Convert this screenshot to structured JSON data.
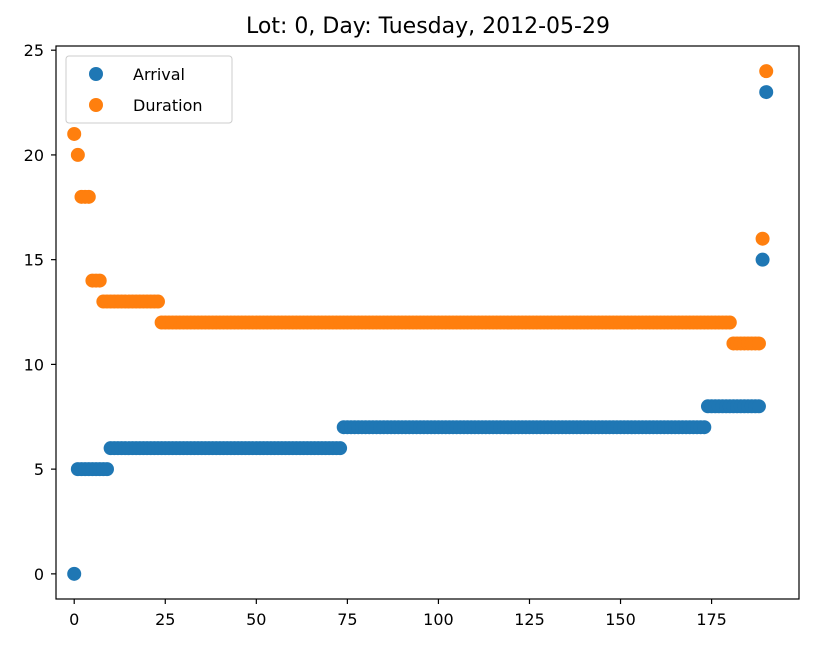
{
  "chart_data": {
    "type": "scatter",
    "title": "Lot: 0, Day: Tuesday, 2012-05-29",
    "xlabel": "",
    "ylabel": "",
    "xlim": [
      -5,
      199
    ],
    "ylim": [
      -1.2,
      25.2
    ],
    "xticks": [
      0,
      25,
      50,
      75,
      100,
      125,
      150,
      175
    ],
    "yticks": [
      0,
      5,
      10,
      15,
      20,
      25
    ],
    "grid": false,
    "legend_position": "top-left",
    "series": [
      {
        "name": "Arrival",
        "color": "#1f77b4",
        "segments": [
          {
            "x_start": 0,
            "x_end": 0,
            "y": 0
          },
          {
            "x_start": 1,
            "x_end": 9,
            "y": 5
          },
          {
            "x_start": 10,
            "x_end": 73,
            "y": 6
          },
          {
            "x_start": 74,
            "x_end": 173,
            "y": 7
          },
          {
            "x_start": 174,
            "x_end": 188,
            "y": 8
          },
          {
            "x_start": 189,
            "x_end": 189,
            "y": 15
          },
          {
            "x_start": 190,
            "x_end": 190,
            "y": 23
          }
        ]
      },
      {
        "name": "Duration",
        "color": "#ff7f0e",
        "segments": [
          {
            "x_start": 0,
            "x_end": 0,
            "y": 21
          },
          {
            "x_start": 1,
            "x_end": 1,
            "y": 20
          },
          {
            "x_start": 2,
            "x_end": 4,
            "y": 18
          },
          {
            "x_start": 5,
            "x_end": 7,
            "y": 14
          },
          {
            "x_start": 8,
            "x_end": 23,
            "y": 13
          },
          {
            "x_start": 24,
            "x_end": 180,
            "y": 12
          },
          {
            "x_start": 181,
            "x_end": 188,
            "y": 11
          },
          {
            "x_start": 189,
            "x_end": 189,
            "y": 16
          },
          {
            "x_start": 190,
            "x_end": 190,
            "y": 24
          }
        ]
      }
    ]
  }
}
